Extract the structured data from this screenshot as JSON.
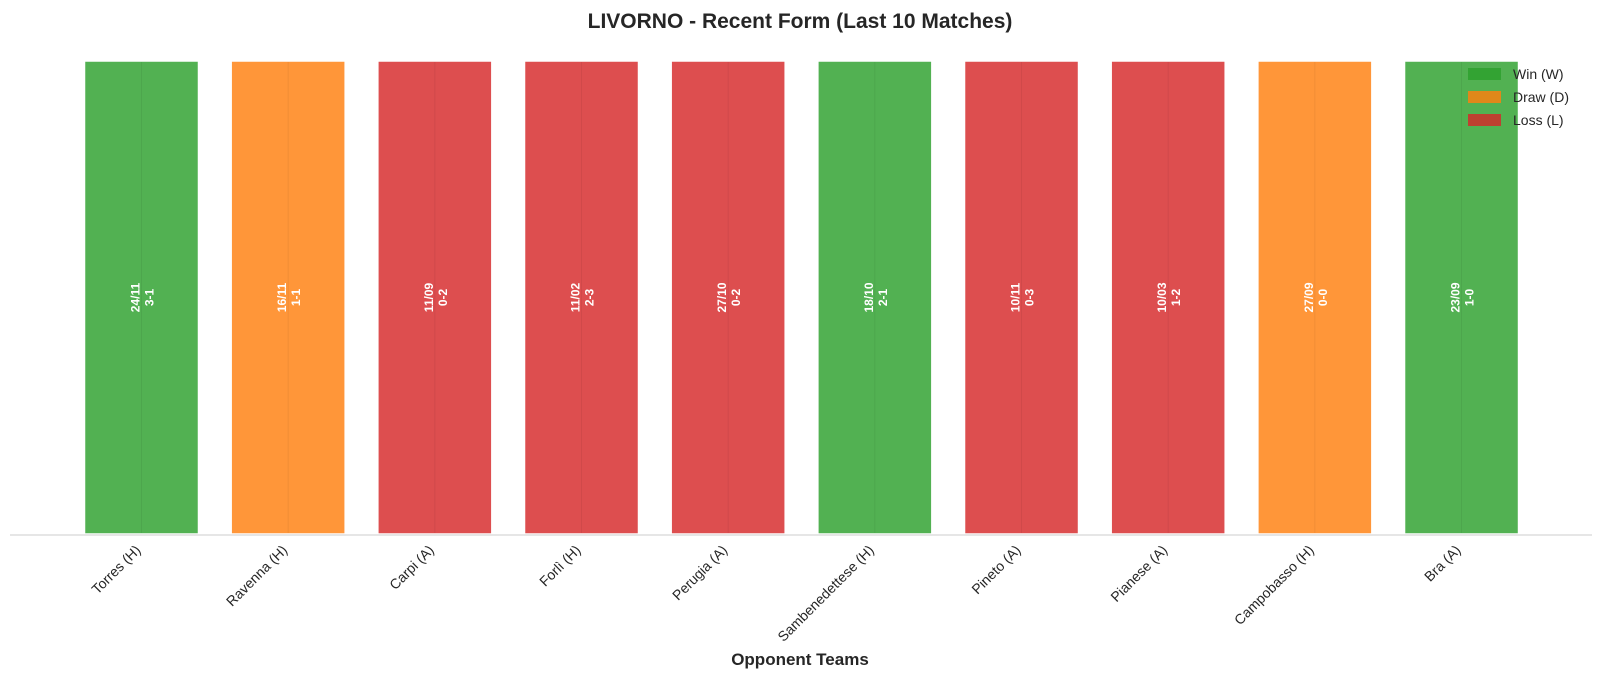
{
  "chart_data": {
    "type": "bar",
    "title": "LIVORNO - Recent Form (Last 10 Matches)",
    "xlabel": "Opponent Teams",
    "ylabel": "",
    "ylim": [
      0,
      1
    ],
    "grid": false,
    "legend_position": "top-right",
    "categories": [
      "Torres (H)",
      "Ravenna (H)",
      "Carpi (A)",
      "Forlì (H)",
      "Perugia (A)",
      "Sambenedettese (H)",
      "Pineto (A)",
      "Pianese (A)",
      "Campobasso (H)",
      "Bra (A)"
    ],
    "values": [
      1,
      1,
      1,
      1,
      1,
      1,
      1,
      1,
      1,
      1
    ],
    "results": [
      "W",
      "D",
      "L",
      "L",
      "L",
      "W",
      "L",
      "L",
      "D",
      "W"
    ],
    "dates": [
      "24/11",
      "16/11",
      "11/09",
      "11/02",
      "27/10",
      "18/10",
      "10/11",
      "10/03",
      "27/09",
      "23/09"
    ],
    "scores": [
      "3-1",
      "1-1",
      "0-2",
      "2-3",
      "0-2",
      "2-1",
      "0-3",
      "1-2",
      "0-0",
      "1-0"
    ],
    "legend": [
      {
        "key": "W",
        "label": "Win (W)",
        "color": "#2ca02c"
      },
      {
        "key": "D",
        "label": "Draw (D)",
        "color": "#ff7f0e"
      },
      {
        "key": "L",
        "label": "Loss (L)",
        "color": "#d62728"
      }
    ]
  }
}
